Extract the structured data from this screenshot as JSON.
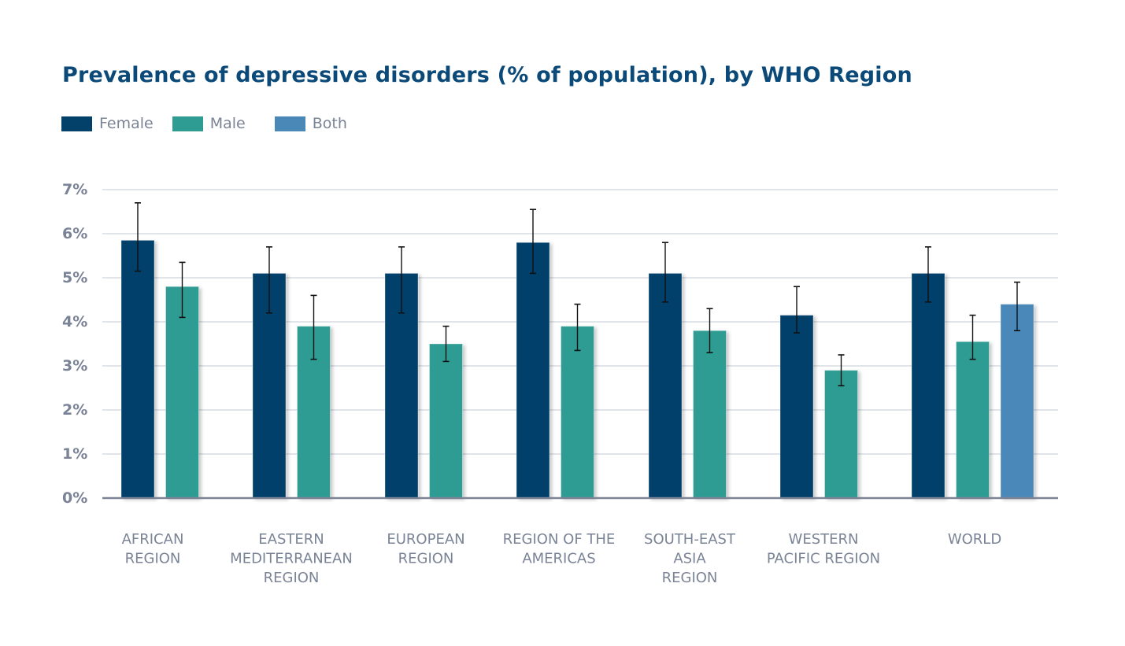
{
  "chart_data": {
    "type": "bar",
    "title": "Prevalence of depressive disorders (% of population), by WHO Region",
    "xlabel": "",
    "ylabel": "",
    "ylim": [
      0,
      7
    ],
    "yticks": [
      0,
      1,
      2,
      3,
      4,
      5,
      6,
      7
    ],
    "ytick_labels": [
      "0%",
      "1%",
      "2%",
      "3%",
      "4%",
      "5%",
      "6%",
      "7%"
    ],
    "grid": true,
    "legend_position": "top-left",
    "categories": [
      [
        "AFRICAN",
        "REGION"
      ],
      [
        "EASTERN",
        "MEDITERRANEAN",
        "REGION"
      ],
      [
        "EUROPEAN",
        "REGION"
      ],
      [
        "REGION OF THE",
        "AMERICAS"
      ],
      [
        "SOUTH-EAST",
        "ASIA",
        "REGION"
      ],
      [
        "WESTERN",
        "PACIFIC REGION"
      ],
      [
        "WORLD"
      ]
    ],
    "series": [
      {
        "name": "Female",
        "color": "#03416b",
        "values": [
          5.85,
          5.1,
          5.1,
          5.8,
          5.1,
          4.15,
          5.1
        ],
        "error_low": [
          5.15,
          4.2,
          4.2,
          5.1,
          4.45,
          3.75,
          4.45
        ],
        "error_high": [
          6.7,
          5.7,
          5.7,
          6.55,
          5.8,
          4.8,
          5.7
        ]
      },
      {
        "name": "Male",
        "color": "#2e9c93",
        "values": [
          4.8,
          3.9,
          3.5,
          3.9,
          3.8,
          2.9,
          3.55
        ],
        "error_low": [
          4.1,
          3.15,
          3.1,
          3.35,
          3.3,
          2.55,
          3.15
        ],
        "error_high": [
          5.35,
          4.6,
          3.9,
          4.4,
          4.3,
          3.25,
          4.15
        ]
      },
      {
        "name": "Both",
        "color": "#4a88b8",
        "values": [
          null,
          null,
          null,
          null,
          null,
          null,
          4.4
        ],
        "error_low": [
          null,
          null,
          null,
          null,
          null,
          null,
          3.8
        ],
        "error_high": [
          null,
          null,
          null,
          null,
          null,
          null,
          4.9
        ]
      }
    ]
  }
}
